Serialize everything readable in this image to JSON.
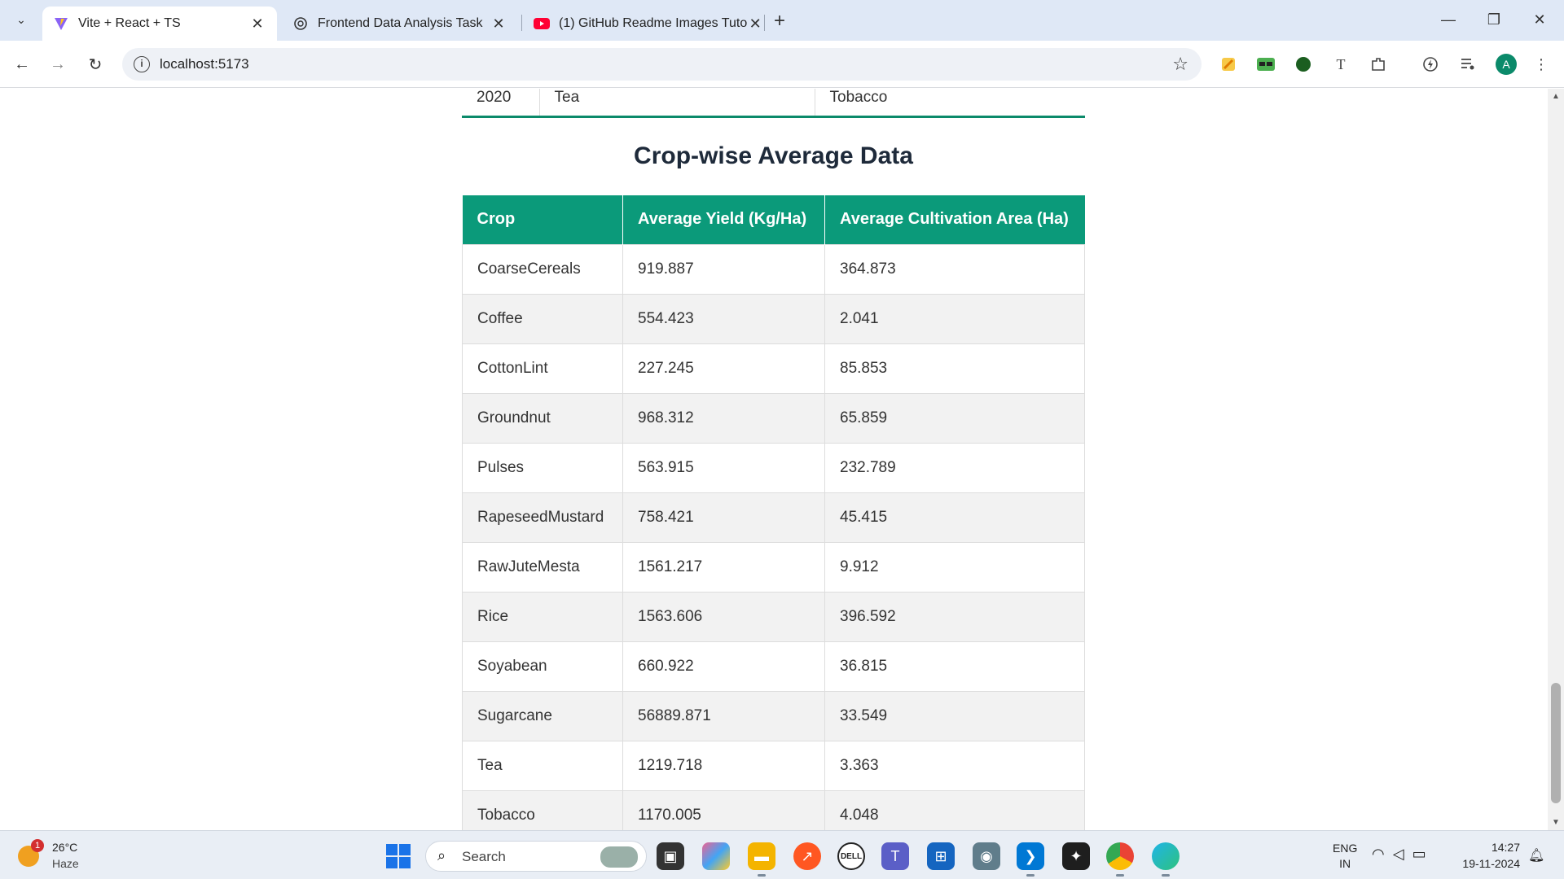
{
  "browser": {
    "tabs": [
      {
        "title": "Vite + React + TS",
        "active": true
      },
      {
        "title": "Frontend Data Analysis Task",
        "active": false
      },
      {
        "title": "(1) GitHub Readme Images Tuto",
        "active": false
      }
    ],
    "url": "localhost:5173",
    "profile_initial": "A"
  },
  "prev_table_tail": {
    "year": "2020",
    "max_crop": "Tea",
    "min_crop": "Tobacco"
  },
  "section": {
    "title": "Crop-wise Average Data"
  },
  "crop_table": {
    "headers": [
      "Crop",
      "Average Yield (Kg/Ha)",
      "Average Cultivation Area (Ha)"
    ],
    "rows": [
      [
        "CoarseCereals",
        "919.887",
        "364.873"
      ],
      [
        "Coffee",
        "554.423",
        "2.041"
      ],
      [
        "CottonLint",
        "227.245",
        "85.853"
      ],
      [
        "Groundnut",
        "968.312",
        "65.859"
      ],
      [
        "Pulses",
        "563.915",
        "232.789"
      ],
      [
        "RapeseedMustard",
        "758.421",
        "45.415"
      ],
      [
        "RawJuteMesta",
        "1561.217",
        "9.912"
      ],
      [
        "Rice",
        "1563.606",
        "396.592"
      ],
      [
        "Soyabean",
        "660.922",
        "36.815"
      ],
      [
        "Sugarcane",
        "56889.871",
        "33.549"
      ],
      [
        "Tea",
        "1219.718",
        "3.363"
      ],
      [
        "Tobacco",
        "1170.005",
        "4.048"
      ]
    ]
  },
  "taskbar": {
    "weather_temp": "26°C",
    "weather_cond": "Haze",
    "weather_badge": "1",
    "search_label": "Search",
    "lang_line1": "ENG",
    "lang_line2": "IN",
    "time": "14:27",
    "date": "19-11-2024"
  },
  "colors": {
    "table_header": "#0b9a7a",
    "accent_line": "#0b8a6a",
    "title_text": "#1e2a3a"
  }
}
